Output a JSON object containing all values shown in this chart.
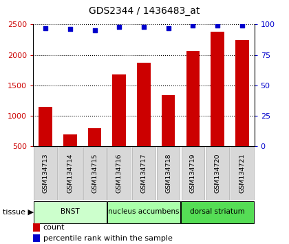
{
  "title": "GDS2344 / 1436483_at",
  "samples": [
    "GSM134713",
    "GSM134714",
    "GSM134715",
    "GSM134716",
    "GSM134717",
    "GSM134718",
    "GSM134719",
    "GSM134720",
    "GSM134721"
  ],
  "counts": [
    1150,
    700,
    800,
    1680,
    1870,
    1340,
    2060,
    2380,
    2250
  ],
  "percentiles": [
    97,
    96,
    95,
    98,
    98,
    97,
    99,
    99,
    99
  ],
  "tissues": [
    {
      "label": "BNST",
      "start": 0,
      "end": 3,
      "color": "#ccffcc"
    },
    {
      "label": "nucleus accumbens",
      "start": 3,
      "end": 6,
      "color": "#aaffaa"
    },
    {
      "label": "dorsal striatum",
      "start": 6,
      "end": 9,
      "color": "#55dd55"
    }
  ],
  "bar_color": "#cc0000",
  "dot_color": "#0000cc",
  "ylim_left": [
    500,
    2500
  ],
  "ylim_right": [
    0,
    100
  ],
  "yticks_left": [
    500,
    1000,
    1500,
    2000,
    2500
  ],
  "yticks_right": [
    0,
    25,
    50,
    75,
    100
  ],
  "tick_label_color_left": "#cc0000",
  "tick_label_color_right": "#0000cc",
  "legend_count_label": "count",
  "legend_pct_label": "percentile rank within the sample",
  "tissue_label": "tissue",
  "bar_bottom": 500,
  "xtick_bg_color": "#d8d8d8",
  "xtick_border_color": "#aaaaaa"
}
